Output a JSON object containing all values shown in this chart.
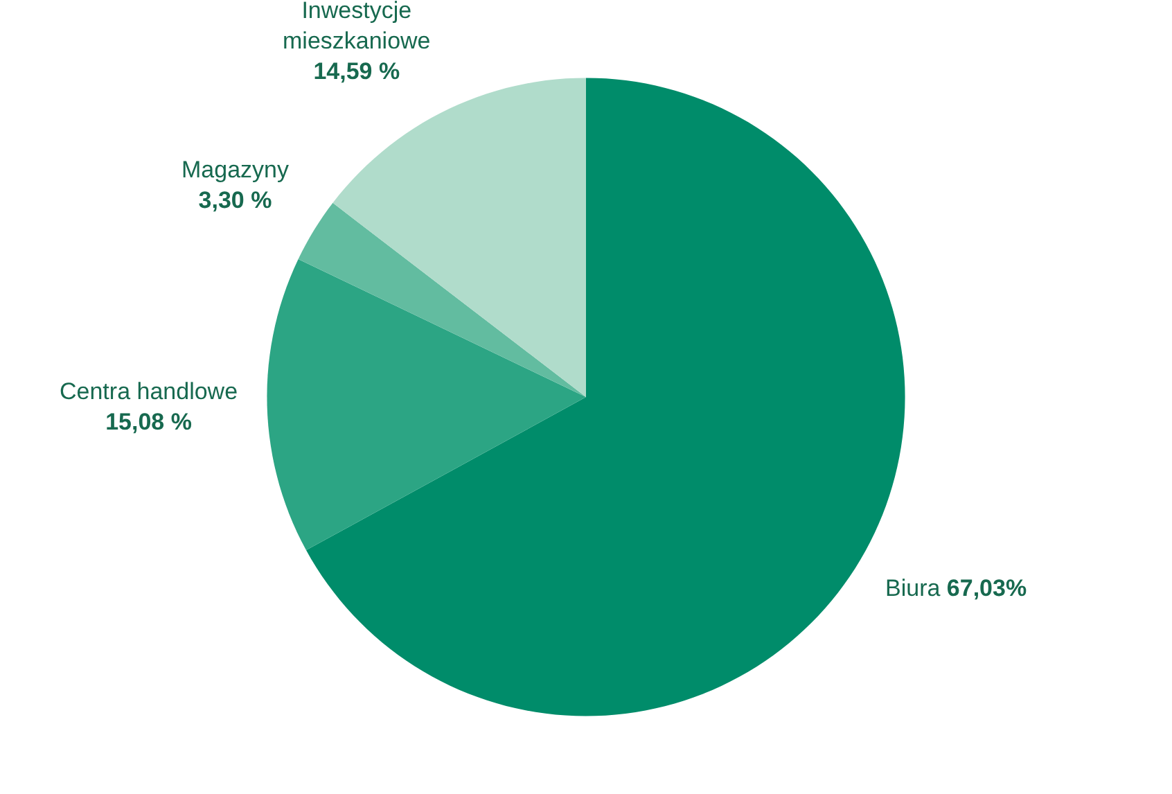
{
  "chart_data": {
    "type": "pie",
    "categories": [
      "Biura",
      "Centra handlowe",
      "Magazyny",
      "Inwestycje mieszkaniowe"
    ],
    "values": [
      67.03,
      15.08,
      3.3,
      14.59
    ],
    "value_labels": [
      "67,03%",
      "15,08 %",
      "3,30 %",
      "14,59 %"
    ],
    "colors": [
      "#008c6a",
      "#2ca584",
      "#62bca0",
      "#b0dccb"
    ],
    "legend": false
  }
}
